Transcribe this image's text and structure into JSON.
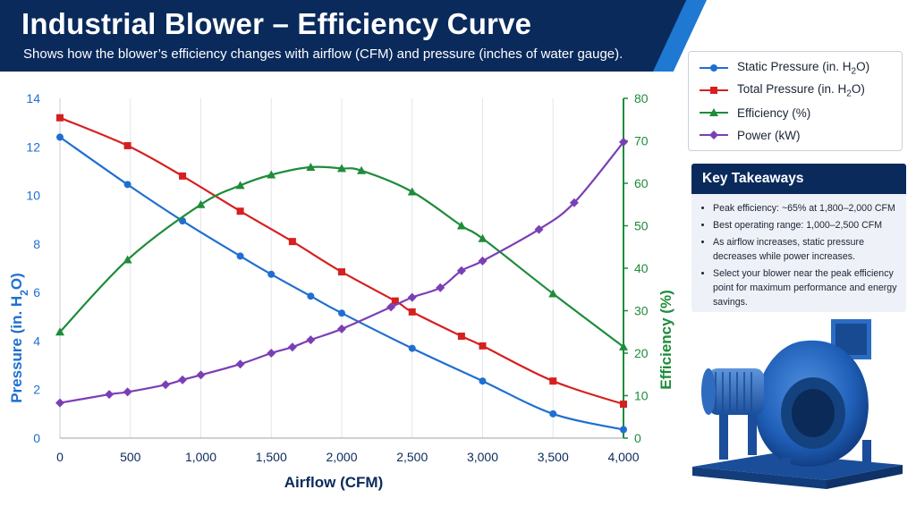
{
  "header": {
    "title": "Industrial Blower – Efficiency Curve",
    "subtitle": "Shows how the blower’s efficiency changes with airflow (CFM) and pressure (inches of water gauge)."
  },
  "legend": {
    "items": [
      {
        "label_text": "Static Pressure (in. H",
        "sub": "2",
        "tail": "O)",
        "color": "#1f6fd1",
        "marker": "circle"
      },
      {
        "label_text": "Total Pressure (in. H",
        "sub": "2",
        "tail": "O)",
        "color": "#d62020",
        "marker": "square"
      },
      {
        "label_text": "Efficiency (%)",
        "sub": "",
        "tail": "",
        "color": "#1e8c3a",
        "marker": "triangle"
      },
      {
        "label_text": "Power (kW)",
        "sub": "",
        "tail": "",
        "color": "#7b3fb5",
        "marker": "diamond"
      }
    ]
  },
  "takeaways": {
    "title": "Key Takeaways",
    "items": [
      "Peak efficiency: ~65% at 1,800–2,000 CFM",
      "Best operating range: 1,000–2,500 CFM",
      "As airflow increases, static pressure decreases while power increases.",
      "Select your blower near the peak efficiency point for maximum performance and energy savings."
    ]
  },
  "chart_data": {
    "type": "line",
    "xlabel": "Airflow (CFM)",
    "ylabel_left": {
      "text": "Pressure (in. H",
      "sub": "2",
      "tail": "O)"
    },
    "ylabel_right": "Efficiency (%)",
    "xlim": [
      0,
      4000
    ],
    "ylim_left": [
      0,
      14
    ],
    "ylim_right": [
      0,
      80
    ],
    "x_ticks": [
      0,
      500,
      1000,
      1500,
      2000,
      2500,
      3000,
      3500,
      4000
    ],
    "x_tick_labels": [
      "0",
      "500",
      "1,000",
      "1,500",
      "2,000",
      "2,500",
      "3,000",
      "3,500",
      "4,000"
    ],
    "y_left_ticks": [
      0,
      2,
      4,
      6,
      8,
      10,
      12,
      14
    ],
    "y_right_ticks": [
      0,
      10,
      20,
      30,
      40,
      50,
      60,
      70,
      80
    ],
    "grid": "vertical",
    "colors": {
      "left_axis": "#1f6fd1",
      "right_axis": "#1e8c3a",
      "grid": "#e3e6ea"
    },
    "series": [
      {
        "name": "Static Pressure (in. H2O)",
        "axis": "left",
        "marker": "circle",
        "color": "#1f6fd1",
        "x": [
          0,
          480,
          870,
          1280,
          1500,
          1780,
          2000,
          2500,
          3000,
          3500,
          4000
        ],
        "y": [
          12.4,
          10.45,
          8.95,
          7.5,
          6.75,
          5.85,
          5.15,
          3.7,
          2.35,
          1.0,
          0.35
        ]
      },
      {
        "name": "Total Pressure (in. H2O)",
        "axis": "left",
        "marker": "square",
        "color": "#d62020",
        "x": [
          0,
          480,
          870,
          1280,
          1650,
          2000,
          2380,
          2500,
          2850,
          3000,
          3500,
          4000
        ],
        "y": [
          13.2,
          12.05,
          10.8,
          9.35,
          8.1,
          6.85,
          5.65,
          5.2,
          4.2,
          3.8,
          2.35,
          1.4
        ]
      },
      {
        "name": "Efficiency (%)",
        "axis": "right",
        "marker": "triangle",
        "color": "#1e8c3a",
        "x": [
          0,
          480,
          1000,
          1280,
          1500,
          1780,
          2000,
          2140,
          2500,
          2850,
          3000,
          3500,
          4000
        ],
        "y": [
          25,
          42,
          55,
          59.5,
          62,
          63.8,
          63.5,
          63,
          58,
          50,
          47,
          34,
          21.5
        ]
      },
      {
        "name": "Power (kW)",
        "axis": "left",
        "marker": "diamond",
        "color": "#7b3fb5",
        "x": [
          0,
          350,
          480,
          750,
          870,
          1000,
          1280,
          1500,
          1650,
          1780,
          2000,
          2350,
          2500,
          2700,
          2850,
          3000,
          3400,
          3650,
          4000
        ],
        "y": [
          1.45,
          1.8,
          1.9,
          2.2,
          2.4,
          2.6,
          3.05,
          3.5,
          3.75,
          4.05,
          4.5,
          5.4,
          5.8,
          6.2,
          6.9,
          7.3,
          8.6,
          9.7,
          12.2
        ]
      }
    ]
  }
}
